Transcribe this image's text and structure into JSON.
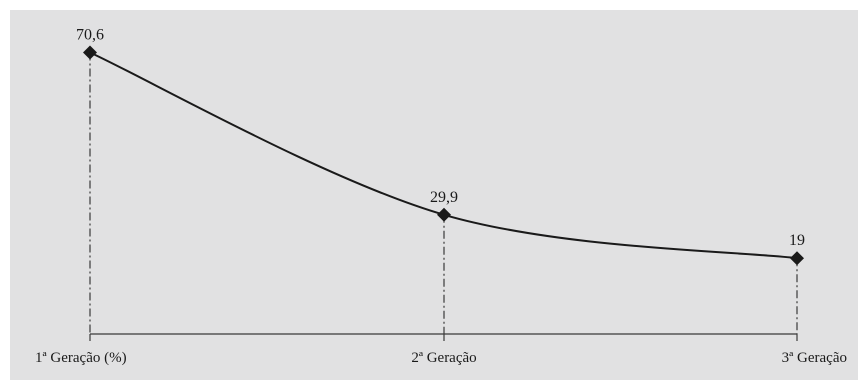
{
  "chart_data": {
    "type": "line",
    "categories": [
      "1ª Geração (%)",
      "2ª Geração",
      "3ª Geração"
    ],
    "series": [
      {
        "values": [
          70.6,
          29.9,
          19
        ],
        "labels": [
          "70,6",
          "29,9",
          "19"
        ]
      }
    ],
    "title": "",
    "xlabel": "",
    "ylabel": "",
    "ylim": [
      0,
      80
    ],
    "grid": false,
    "smooth": true,
    "marker": "diamond",
    "drop_lines": "dash-dot",
    "colors": {
      "background": "#e1e1e2",
      "line": "#1a1a1a",
      "axis": "#3a3a3a"
    }
  }
}
